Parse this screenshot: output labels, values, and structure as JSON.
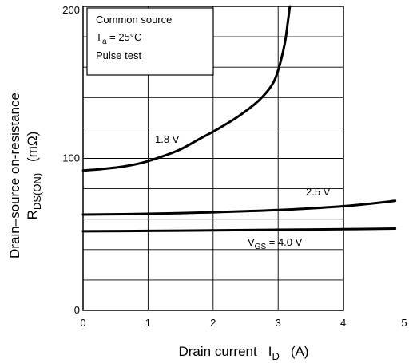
{
  "chart_data": {
    "type": "line",
    "xlabel_main": "Drain current",
    "xlabel_symbol": "I",
    "xlabel_symbol_sub": "D",
    "xlabel_unit": "(A)",
    "ylabel_line1": "Drain–source on-resistance",
    "ylabel_symbol": "R",
    "ylabel_symbol_sub": "DS(ON)",
    "ylabel_unit": "(mΩ)",
    "xlim": [
      0,
      5
    ],
    "ylim": [
      0,
      200
    ],
    "x_ticks": [
      "0",
      "1",
      "2",
      "3",
      "4",
      "5"
    ],
    "y_ticks": [
      "0",
      "100",
      "200"
    ],
    "grid": true,
    "conditions": {
      "line1": "Common source",
      "line2_symbol": "T",
      "line2_sub": "a",
      "line2_rest": " = 25°C",
      "line3": "Pulse test"
    },
    "series": [
      {
        "name": "1.8 V",
        "x": [
          0,
          0.3,
          0.6,
          0.9,
          1.2,
          1.5,
          1.8,
          2.1,
          2.4,
          2.7,
          2.9,
          3.0,
          3.1,
          3.15,
          3.18
        ],
        "y": [
          92,
          93,
          94.5,
          97,
          101,
          106,
          113,
          120,
          128,
          138,
          148,
          158,
          175,
          190,
          200
        ]
      },
      {
        "name": "2.5 V",
        "x": [
          0,
          1,
          2,
          3,
          4,
          4.8
        ],
        "y": [
          63,
          63.5,
          64.5,
          66,
          68.5,
          72
        ]
      },
      {
        "name_prefix": "V",
        "name_sub": "GS",
        "name_rest": " = 4.0 V",
        "x": [
          0,
          1,
          2,
          3,
          4,
          4.8
        ],
        "y": [
          52,
          52.3,
          52.6,
          53,
          53.4,
          53.8
        ]
      }
    ]
  }
}
